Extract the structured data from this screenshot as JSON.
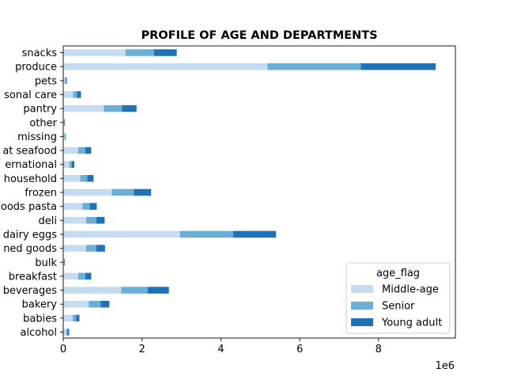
{
  "chart_data": {
    "type": "bar",
    "orientation": "horizontal",
    "stacked": true,
    "title": "PROFILE OF AGE AND DEPARTMENTS",
    "xlabel": "",
    "ylabel": "",
    "x_multiplier_label": "1e6",
    "xlim": [
      0,
      9.95
    ],
    "x_ticks": [
      0,
      2,
      4,
      6,
      8
    ],
    "grid": false,
    "legend": {
      "title": "age_flag",
      "placement": "lower-right"
    },
    "categories": [
      "alcohol",
      "babies",
      "bakery",
      "beverages",
      "breakfast",
      "bulk",
      "canned goods",
      "dairy eggs",
      "deli",
      "dry goods pasta",
      "frozen",
      "household",
      "international",
      "meat seafood",
      "missing",
      "other",
      "pantry",
      "personal care",
      "pets",
      "produce",
      "snacks"
    ],
    "category_labels_visible": [
      "alcohol",
      "babies",
      "bakery",
      "beverages",
      "breakfast",
      "bulk",
      "ned goods",
      "dairy eggs",
      "deli",
      "oods pasta",
      "frozen",
      "household",
      "ernational",
      "at seafood",
      "missing",
      "other",
      "pantry",
      "sonal care",
      "pets",
      "produce",
      "snacks"
    ],
    "series": [
      {
        "name": "Middle-age",
        "color": "#c6dbef",
        "values": [
          0.08,
          0.24,
          0.65,
          1.47,
          0.38,
          0.02,
          0.58,
          2.96,
          0.58,
          0.49,
          1.23,
          0.43,
          0.16,
          0.38,
          0.04,
          0.02,
          1.03,
          0.25,
          0.05,
          5.18,
          1.58
        ]
      },
      {
        "name": "Senior",
        "color": "#6baed6",
        "values": [
          0.03,
          0.09,
          0.3,
          0.67,
          0.18,
          0.01,
          0.26,
          1.35,
          0.26,
          0.18,
          0.56,
          0.18,
          0.06,
          0.18,
          0.01,
          0.01,
          0.46,
          0.1,
          0.02,
          2.37,
          0.72
        ]
      },
      {
        "name": "Young adult",
        "color": "#2171b5",
        "values": [
          0.04,
          0.08,
          0.22,
          0.54,
          0.15,
          0.01,
          0.22,
          1.09,
          0.21,
          0.18,
          0.44,
          0.16,
          0.06,
          0.15,
          0.01,
          0.01,
          0.37,
          0.1,
          0.02,
          1.9,
          0.58
        ]
      }
    ]
  }
}
